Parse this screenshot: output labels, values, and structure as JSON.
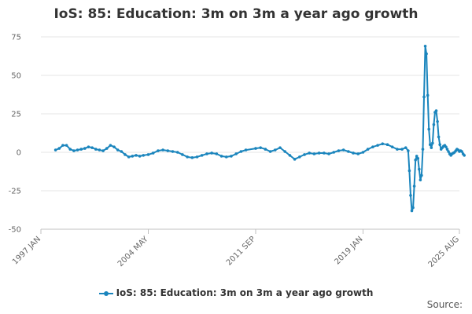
{
  "chart_data": {
    "type": "line",
    "title": "IoS: 85: Education: 3m on 3m a year ago growth",
    "series": [
      {
        "name": "IoS: 85: Education: 3m on 3m a year ago growth",
        "color": "#1a85bd",
        "points": [
          [
            "1998-01",
            1.5
          ],
          [
            "1998-04",
            2.5
          ],
          [
            "1998-07",
            4.5
          ],
          [
            "1998-10",
            4.5
          ],
          [
            "1999-01",
            2.0
          ],
          [
            "1999-04",
            1.0
          ],
          [
            "1999-07",
            1.5
          ],
          [
            "1999-10",
            2.0
          ],
          [
            "2000-01",
            2.5
          ],
          [
            "2000-04",
            3.5
          ],
          [
            "2000-07",
            3.0
          ],
          [
            "2000-10",
            2.0
          ],
          [
            "2001-01",
            1.5
          ],
          [
            "2001-04",
            1.0
          ],
          [
            "2001-07",
            2.5
          ],
          [
            "2001-10",
            4.5
          ],
          [
            "2002-01",
            3.5
          ],
          [
            "2002-04",
            1.5
          ],
          [
            "2002-07",
            0.5
          ],
          [
            "2002-10",
            -1.5
          ],
          [
            "2003-01",
            -3.0
          ],
          [
            "2003-04",
            -2.5
          ],
          [
            "2003-07",
            -2.0
          ],
          [
            "2003-10",
            -2.5
          ],
          [
            "2004-01",
            -2.0
          ],
          [
            "2004-05",
            -1.5
          ],
          [
            "2004-09",
            -0.5
          ],
          [
            "2005-01",
            1.0
          ],
          [
            "2005-05",
            1.5
          ],
          [
            "2005-09",
            1.0
          ],
          [
            "2006-01",
            0.5
          ],
          [
            "2006-05",
            0.0
          ],
          [
            "2006-09",
            -1.5
          ],
          [
            "2007-01",
            -3.0
          ],
          [
            "2007-05",
            -3.5
          ],
          [
            "2007-09",
            -3.0
          ],
          [
            "2008-01",
            -2.0
          ],
          [
            "2008-05",
            -1.0
          ],
          [
            "2008-09",
            -0.5
          ],
          [
            "2009-01",
            -1.0
          ],
          [
            "2009-05",
            -2.5
          ],
          [
            "2009-09",
            -3.0
          ],
          [
            "2010-01",
            -2.5
          ],
          [
            "2010-05",
            -1.0
          ],
          [
            "2010-09",
            0.5
          ],
          [
            "2011-01",
            1.5
          ],
          [
            "2011-09",
            2.5
          ],
          [
            "2012-01",
            3.0
          ],
          [
            "2012-05",
            2.0
          ],
          [
            "2012-09",
            0.5
          ],
          [
            "2013-01",
            1.5
          ],
          [
            "2013-05",
            3.0
          ],
          [
            "2013-09",
            0.5
          ],
          [
            "2014-01",
            -2.0
          ],
          [
            "2014-05",
            -4.5
          ],
          [
            "2014-09",
            -3.0
          ],
          [
            "2015-01",
            -1.5
          ],
          [
            "2015-05",
            -0.5
          ],
          [
            "2015-09",
            -1.0
          ],
          [
            "2016-01",
            -0.5
          ],
          [
            "2016-05",
            -0.5
          ],
          [
            "2016-09",
            -1.0
          ],
          [
            "2017-01",
            0.0
          ],
          [
            "2017-05",
            1.0
          ],
          [
            "2017-09",
            1.5
          ],
          [
            "2018-01",
            0.5
          ],
          [
            "2018-05",
            -0.5
          ],
          [
            "2018-09",
            -1.0
          ],
          [
            "2019-01",
            0.0
          ],
          [
            "2019-05",
            2.0
          ],
          [
            "2019-09",
            3.5
          ],
          [
            "2020-01",
            4.5
          ],
          [
            "2020-05",
            5.5
          ],
          [
            "2020-09",
            5.0
          ],
          [
            "2021-01",
            3.5
          ],
          [
            "2021-05",
            2.0
          ],
          [
            "2021-09",
            2.0
          ],
          [
            "2021-12",
            3.0
          ],
          [
            "2022-02",
            1.0
          ],
          [
            "2022-03",
            -12.0
          ],
          [
            "2022-04",
            -28.0
          ],
          [
            "2022-05",
            -38.0
          ],
          [
            "2022-06",
            -36.0
          ],
          [
            "2022-07",
            -22.0
          ],
          [
            "2022-08",
            -5.0
          ],
          [
            "2022-09",
            -2.5
          ],
          [
            "2022-10",
            -4.0
          ],
          [
            "2022-11",
            -11.0
          ],
          [
            "2022-12",
            -18.0
          ],
          [
            "2023-01",
            -15.0
          ],
          [
            "2023-02",
            2.0
          ],
          [
            "2023-03",
            36.0
          ],
          [
            "2023-04",
            69.0
          ],
          [
            "2023-05",
            64.0
          ],
          [
            "2023-06",
            37.0
          ],
          [
            "2023-07",
            15.0
          ],
          [
            "2023-08",
            5.0
          ],
          [
            "2023-09",
            3.0
          ],
          [
            "2023-10",
            6.0
          ],
          [
            "2023-11",
            18.0
          ],
          [
            "2023-12",
            26.0
          ],
          [
            "2024-01",
            27.0
          ],
          [
            "2024-02",
            20.0
          ],
          [
            "2024-03",
            10.0
          ],
          [
            "2024-04",
            5.0
          ],
          [
            "2024-05",
            2.0
          ],
          [
            "2024-06",
            3.0
          ],
          [
            "2024-07",
            4.0
          ],
          [
            "2024-08",
            4.5
          ],
          [
            "2024-09",
            3.5
          ],
          [
            "2024-10",
            2.0
          ],
          [
            "2024-11",
            0.5
          ],
          [
            "2024-12",
            -1.0
          ],
          [
            "2025-01",
            -2.0
          ],
          [
            "2025-02",
            -1.0
          ],
          [
            "2025-03",
            -0.5
          ],
          [
            "2025-04",
            0.0
          ],
          [
            "2025-05",
            1.0
          ],
          [
            "2025-06",
            2.0
          ],
          [
            "2025-07",
            1.5
          ],
          [
            "2025-08",
            0.5
          ],
          [
            "2025-09",
            1.0
          ],
          [
            "2025-10",
            0.5
          ],
          [
            "2025-11",
            -1.0
          ],
          [
            "2025-12",
            -2.0
          ]
        ]
      }
    ],
    "xlabel": "",
    "ylabel": "",
    "x_tick_labels": [
      "1997 JAN",
      "2004 MAY",
      "2011 SEP",
      "2019 JAN",
      "2025 AUG"
    ],
    "x_tick_dates": [
      "1997-01",
      "2004-05",
      "2011-09",
      "2019-01",
      "2025-08"
    ],
    "y_ticks": [
      75,
      50,
      25,
      0,
      -25,
      -50
    ],
    "xlim": [
      "1997-01",
      "2025-08"
    ],
    "ylim": [
      -50,
      75
    ],
    "grid": true,
    "legend": "bottom-center",
    "source_label": "Source:"
  }
}
